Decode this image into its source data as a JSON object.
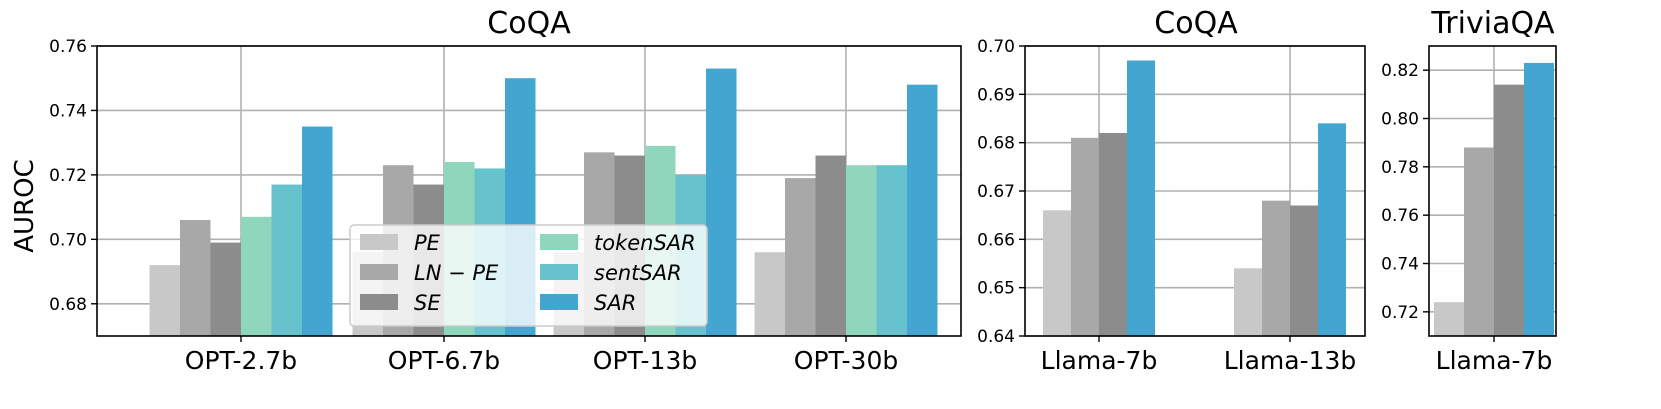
{
  "y_axis_label": "AUROC",
  "colors": {
    "PE": "#c8c8c8",
    "LN-PE": "#a8a8a8",
    "SE": "#8c8c8c",
    "tokenSAR": "#8fd6bd",
    "sentSAR": "#66c2cc",
    "SAR": "#42a6d0"
  },
  "legend": {
    "items": [
      {
        "key": "PE",
        "label": "PE"
      },
      {
        "key": "LN-PE",
        "label": "LN − PE"
      },
      {
        "key": "SE",
        "label": "SE"
      },
      {
        "key": "tokenSAR",
        "label": "tokenSAR"
      },
      {
        "key": "sentSAR",
        "label": "sentSAR"
      },
      {
        "key": "SAR",
        "label": "SAR"
      }
    ]
  },
  "chart_data": [
    {
      "type": "bar",
      "title": "CoQA",
      "ylabel": "AUROC",
      "ylim": [
        0.67,
        0.76
      ],
      "yticks": [
        "0.68",
        "0.70",
        "0.72",
        "0.74",
        "0.76"
      ],
      "grid": true,
      "legend_position": "lower-center",
      "categories": [
        "OPT-2.7b",
        "OPT-6.7b",
        "OPT-13b",
        "OPT-30b"
      ],
      "series": [
        {
          "name": "PE",
          "key": "PE",
          "values": [
            0.692,
            0.696,
            0.696,
            0.696
          ]
        },
        {
          "name": "LN − PE",
          "key": "LN-PE",
          "values": [
            0.706,
            0.723,
            0.727,
            0.719
          ]
        },
        {
          "name": "SE",
          "key": "SE",
          "values": [
            0.699,
            0.717,
            0.726,
            0.726
          ]
        },
        {
          "name": "tokenSAR",
          "key": "tokenSAR",
          "values": [
            0.707,
            0.724,
            0.729,
            0.723
          ]
        },
        {
          "name": "sentSAR",
          "key": "sentSAR",
          "values": [
            0.717,
            0.722,
            0.72,
            0.723
          ]
        },
        {
          "name": "SAR",
          "key": "SAR",
          "values": [
            0.735,
            0.75,
            0.753,
            0.748
          ]
        }
      ]
    },
    {
      "type": "bar",
      "title": "CoQA",
      "ylim": [
        0.64,
        0.7
      ],
      "yticks": [
        "0.64",
        "0.65",
        "0.66",
        "0.67",
        "0.68",
        "0.69",
        "0.70"
      ],
      "grid": true,
      "categories": [
        "Llama-7b",
        "Llama-13b"
      ],
      "series": [
        {
          "name": "PE",
          "key": "PE",
          "values": [
            0.666,
            0.654
          ]
        },
        {
          "name": "LN − PE",
          "key": "LN-PE",
          "values": [
            0.681,
            0.668
          ]
        },
        {
          "name": "SE",
          "key": "SE",
          "values": [
            0.682,
            0.667
          ]
        },
        {
          "name": "SAR",
          "key": "SAR",
          "values": [
            0.697,
            0.684
          ]
        }
      ]
    },
    {
      "type": "bar",
      "title": "TriviaQA",
      "ylim": [
        0.71,
        0.83
      ],
      "yticks": [
        "0.72",
        "0.74",
        "0.76",
        "0.78",
        "0.80",
        "0.82"
      ],
      "grid": true,
      "categories": [
        "Llama-7b"
      ],
      "series": [
        {
          "name": "PE",
          "key": "PE",
          "values": [
            0.724
          ]
        },
        {
          "name": "LN − PE",
          "key": "LN-PE",
          "values": [
            0.788
          ]
        },
        {
          "name": "SE",
          "key": "SE",
          "values": [
            0.814
          ]
        },
        {
          "name": "SAR",
          "key": "SAR",
          "values": [
            0.823
          ]
        }
      ]
    }
  ]
}
